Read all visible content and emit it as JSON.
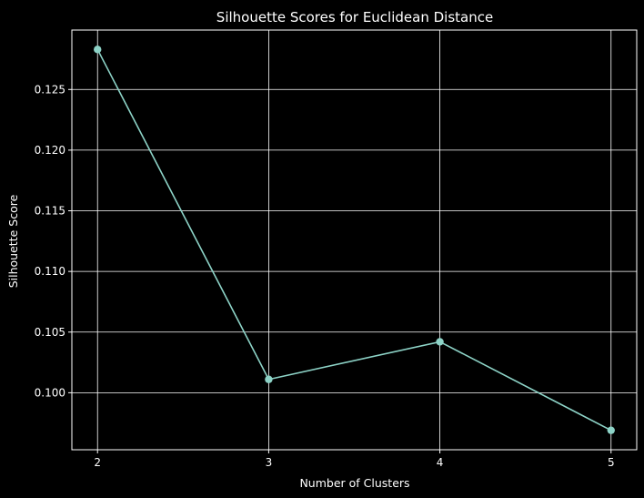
{
  "chart_data": {
    "type": "line",
    "title": "Silhouette Scores for Euclidean Distance",
    "xlabel": "Number of Clusters",
    "ylabel": "Silhouette Score",
    "x": [
      2,
      3,
      4,
      5
    ],
    "series": [
      {
        "values": [
          0.1283,
          0.1011,
          0.1042,
          0.0969
        ]
      }
    ],
    "xticks": [
      "2",
      "3",
      "4",
      "5"
    ],
    "yticks": [
      "0.100",
      "0.105",
      "0.110",
      "0.115",
      "0.120",
      "0.125"
    ],
    "ytick_values": [
      0.1,
      0.105,
      0.11,
      0.115,
      0.12,
      0.125
    ],
    "xlim": [
      1.85,
      5.15
    ],
    "ylim": [
      0.0953,
      0.1299
    ],
    "grid": true,
    "marker": "circle",
    "colors": {
      "background": "#000000",
      "line": "#8dd3c7",
      "grid": "#ffffff",
      "axes": "#ffffff",
      "text": "#ffffff"
    }
  }
}
